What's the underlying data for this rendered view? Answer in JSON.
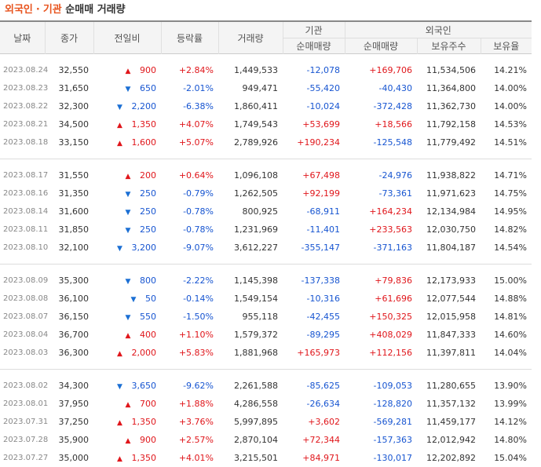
{
  "title": {
    "foreign": "외국인",
    "sep": "·",
    "inst": "기관",
    "rest": "순매매 거래량"
  },
  "headers": {
    "date": "날짜",
    "close": "종가",
    "change": "전일비",
    "rate": "등락률",
    "volume": "거래량",
    "inst_group": "기관",
    "foreign_group": "외국인",
    "inst_net": "순매매량",
    "foreign_net": "순매매량",
    "foreign_shares": "보유주수",
    "foreign_ratio": "보유율"
  },
  "arrows": {
    "up": "▲",
    "down": "▼"
  },
  "colors": {
    "accent": "#e8541e",
    "rise": "#e0161b",
    "fall": "#1755d1"
  },
  "groups": [
    [
      {
        "date": "2023.08.24",
        "close": "32,550",
        "dir": "up",
        "change": "900",
        "rate": "+2.84%",
        "volume": "1,449,533",
        "inst": "-12,078",
        "foreign": "+169,706",
        "shares": "11,534,506",
        "ratio": "14.21%"
      },
      {
        "date": "2023.08.23",
        "close": "31,650",
        "dir": "down",
        "change": "650",
        "rate": "-2.01%",
        "volume": "949,471",
        "inst": "-55,420",
        "foreign": "-40,430",
        "shares": "11,364,800",
        "ratio": "14.00%"
      },
      {
        "date": "2023.08.22",
        "close": "32,300",
        "dir": "down",
        "change": "2,200",
        "rate": "-6.38%",
        "volume": "1,860,411",
        "inst": "-10,024",
        "foreign": "-372,428",
        "shares": "11,362,730",
        "ratio": "14.00%"
      },
      {
        "date": "2023.08.21",
        "close": "34,500",
        "dir": "up",
        "change": "1,350",
        "rate": "+4.07%",
        "volume": "1,749,543",
        "inst": "+53,699",
        "foreign": "+18,566",
        "shares": "11,792,158",
        "ratio": "14.53%"
      },
      {
        "date": "2023.08.18",
        "close": "33,150",
        "dir": "up",
        "change": "1,600",
        "rate": "+5.07%",
        "volume": "2,789,926",
        "inst": "+190,234",
        "foreign": "-125,548",
        "shares": "11,779,492",
        "ratio": "14.51%"
      }
    ],
    [
      {
        "date": "2023.08.17",
        "close": "31,550",
        "dir": "up",
        "change": "200",
        "rate": "+0.64%",
        "volume": "1,096,108",
        "inst": "+67,498",
        "foreign": "-24,976",
        "shares": "11,938,822",
        "ratio": "14.71%"
      },
      {
        "date": "2023.08.16",
        "close": "31,350",
        "dir": "down",
        "change": "250",
        "rate": "-0.79%",
        "volume": "1,262,505",
        "inst": "+92,199",
        "foreign": "-73,361",
        "shares": "11,971,623",
        "ratio": "14.75%"
      },
      {
        "date": "2023.08.14",
        "close": "31,600",
        "dir": "down",
        "change": "250",
        "rate": "-0.78%",
        "volume": "800,925",
        "inst": "-68,911",
        "foreign": "+164,234",
        "shares": "12,134,984",
        "ratio": "14.95%"
      },
      {
        "date": "2023.08.11",
        "close": "31,850",
        "dir": "down",
        "change": "250",
        "rate": "-0.78%",
        "volume": "1,231,969",
        "inst": "-11,401",
        "foreign": "+233,563",
        "shares": "12,030,750",
        "ratio": "14.82%"
      },
      {
        "date": "2023.08.10",
        "close": "32,100",
        "dir": "down",
        "change": "3,200",
        "rate": "-9.07%",
        "volume": "3,612,227",
        "inst": "-355,147",
        "foreign": "-371,163",
        "shares": "11,804,187",
        "ratio": "14.54%"
      }
    ],
    [
      {
        "date": "2023.08.09",
        "close": "35,300",
        "dir": "down",
        "change": "800",
        "rate": "-2.22%",
        "volume": "1,145,398",
        "inst": "-137,338",
        "foreign": "+79,836",
        "shares": "12,173,933",
        "ratio": "15.00%"
      },
      {
        "date": "2023.08.08",
        "close": "36,100",
        "dir": "down",
        "change": "50",
        "rate": "-0.14%",
        "volume": "1,549,154",
        "inst": "-10,316",
        "foreign": "+61,696",
        "shares": "12,077,544",
        "ratio": "14.88%"
      },
      {
        "date": "2023.08.07",
        "close": "36,150",
        "dir": "down",
        "change": "550",
        "rate": "-1.50%",
        "volume": "955,118",
        "inst": "-42,455",
        "foreign": "+150,325",
        "shares": "12,015,958",
        "ratio": "14.81%"
      },
      {
        "date": "2023.08.04",
        "close": "36,700",
        "dir": "up",
        "change": "400",
        "rate": "+1.10%",
        "volume": "1,579,372",
        "inst": "-89,295",
        "foreign": "+408,029",
        "shares": "11,847,333",
        "ratio": "14.60%"
      },
      {
        "date": "2023.08.03",
        "close": "36,300",
        "dir": "up",
        "change": "2,000",
        "rate": "+5.83%",
        "volume": "1,881,968",
        "inst": "+165,973",
        "foreign": "+112,156",
        "shares": "11,397,811",
        "ratio": "14.04%"
      }
    ],
    [
      {
        "date": "2023.08.02",
        "close": "34,300",
        "dir": "down",
        "change": "3,650",
        "rate": "-9.62%",
        "volume": "2,261,588",
        "inst": "-85,625",
        "foreign": "-109,053",
        "shares": "11,280,655",
        "ratio": "13.90%"
      },
      {
        "date": "2023.08.01",
        "close": "37,950",
        "dir": "up",
        "change": "700",
        "rate": "+1.88%",
        "volume": "4,286,558",
        "inst": "-26,634",
        "foreign": "-128,820",
        "shares": "11,357,132",
        "ratio": "13.99%"
      },
      {
        "date": "2023.07.31",
        "close": "37,250",
        "dir": "up",
        "change": "1,350",
        "rate": "+3.76%",
        "volume": "5,997,895",
        "inst": "+3,602",
        "foreign": "-569,281",
        "shares": "11,459,177",
        "ratio": "14.12%"
      },
      {
        "date": "2023.07.28",
        "close": "35,900",
        "dir": "up",
        "change": "900",
        "rate": "+2.57%",
        "volume": "2,870,104",
        "inst": "+72,344",
        "foreign": "-157,363",
        "shares": "12,012,942",
        "ratio": "14.80%"
      },
      {
        "date": "2023.07.27",
        "close": "35,000",
        "dir": "up",
        "change": "1,350",
        "rate": "+4.01%",
        "volume": "3,215,501",
        "inst": "+84,971",
        "foreign": "-130,017",
        "shares": "12,202,892",
        "ratio": "15.04%"
      }
    ]
  ]
}
